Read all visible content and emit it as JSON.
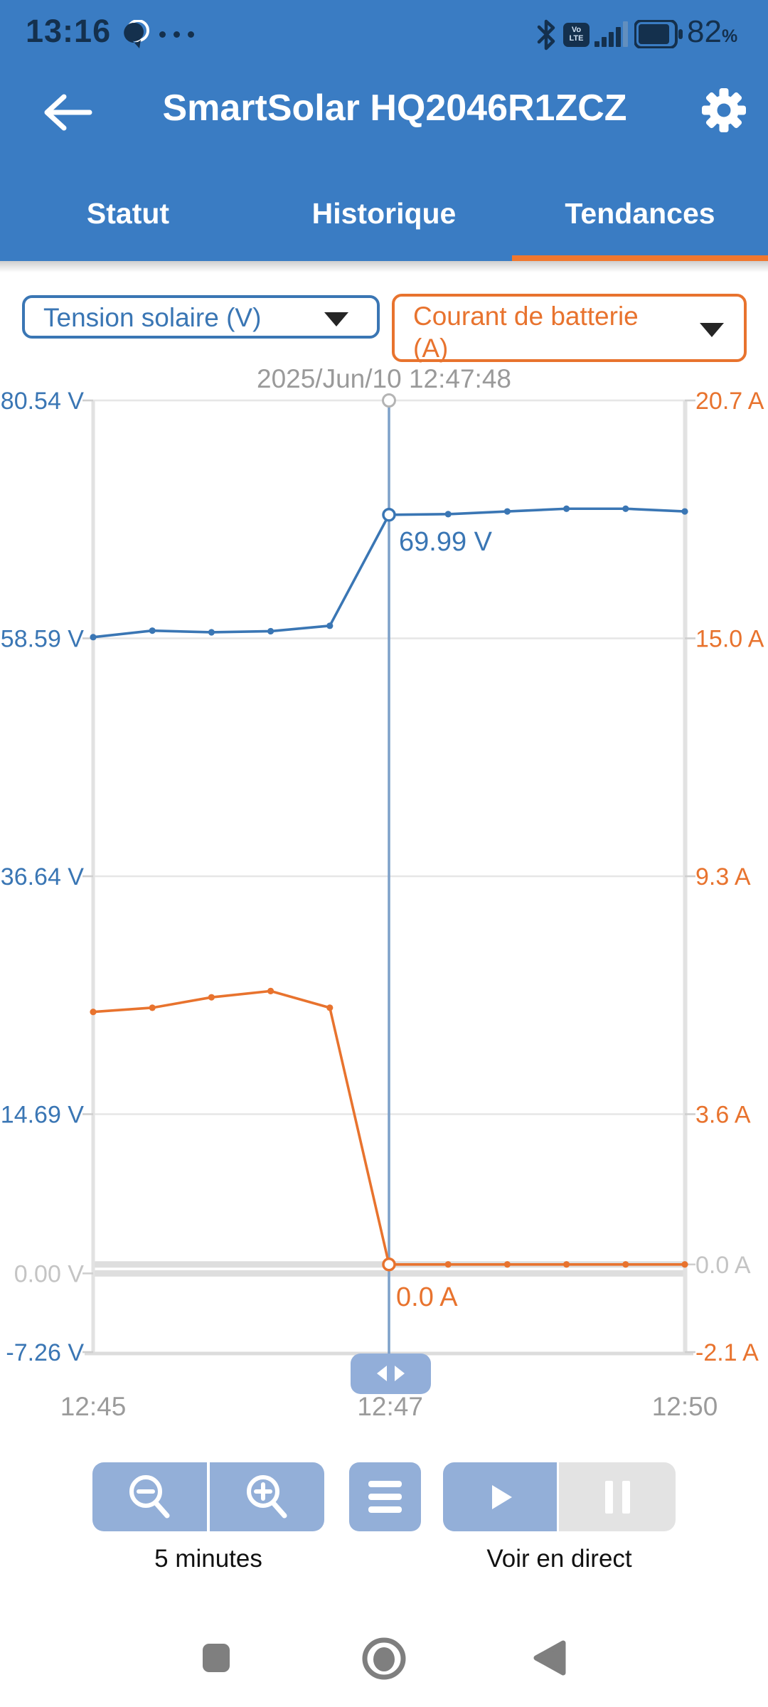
{
  "status_bar": {
    "time": "13:16",
    "battery_percent": "82",
    "percent_sign": "%",
    "volte_line1": "Vo",
    "volte_line2": "LTE"
  },
  "header": {
    "title": "SmartSolar HQ2046R1ZCZ"
  },
  "tabs": [
    {
      "label": "Statut",
      "active": false
    },
    {
      "label": "Historique",
      "active": false
    },
    {
      "label": "Tendances",
      "active": true
    }
  ],
  "selectors": {
    "left": {
      "label": "Tension solaire (V)"
    },
    "right": {
      "label": "Courant de batterie (A)"
    }
  },
  "tooltip": {
    "datetime": "2025/Jun/10 12:47:48"
  },
  "chart_data": {
    "type": "line",
    "title": "",
    "x_axis": {
      "ticks": [
        {
          "label": "12:45",
          "frac": 0.0
        },
        {
          "label": "12:47",
          "frac": 0.502
        },
        {
          "label": "12:50",
          "frac": 1.0
        }
      ]
    },
    "left_axis": {
      "name": "Tension solaire",
      "unit": "V",
      "min": -7.26,
      "max": 80.54,
      "ticks": [
        80.54,
        58.59,
        36.64,
        14.69,
        0,
        -7.26
      ],
      "tick_labels": [
        "80.54 V",
        "58.59 V",
        "36.64 V",
        "14.69 V",
        "0.00 V",
        "-7.26 V"
      ],
      "color": "#3a76b4"
    },
    "right_axis": {
      "name": "Courant de batterie",
      "unit": "A",
      "min": -2.1,
      "max": 20.7,
      "ticks": [
        20.7,
        15.0,
        9.3,
        3.6,
        0,
        -2.1
      ],
      "tick_labels": [
        "20.7 A",
        "15.0 A",
        "9.3 A",
        "3.6 A",
        "0.0 A",
        "-2.1 A"
      ],
      "color": "#e8732e"
    },
    "series": [
      {
        "name": "Tension solaire (V)",
        "axis": "left",
        "color": "#3a76b4",
        "values": [
          58.7,
          59.3,
          59.15,
          59.25,
          59.75,
          69.99,
          70.05,
          70.3,
          70.55,
          70.55,
          70.3
        ]
      },
      {
        "name": "Courant de batterie (A)",
        "axis": "right",
        "color": "#e8732e",
        "values": [
          6.05,
          6.15,
          6.4,
          6.55,
          6.15,
          0.0,
          0.0,
          0.0,
          0.0,
          0.0,
          0.0
        ]
      }
    ],
    "highlight": {
      "index": 5,
      "datetime": "2025/Jun/10 12:47:48",
      "labels": [
        {
          "series": 0,
          "text": "69.99 V"
        },
        {
          "series": 1,
          "text": "0.0 A"
        }
      ]
    },
    "grid": true,
    "legend_position": "none"
  },
  "controls": {
    "interval_label": "5 minutes",
    "live_label": "Voir en direct"
  },
  "colors": {
    "header_bg": "#3a7cc3",
    "accent_blue": "#3a76b4",
    "accent_orange": "#e8732e",
    "tab_underline": "#f0772e",
    "crosshair": "#7da0c9",
    "button_blue": "#93afd8",
    "pause_gray": "#e3e3e3",
    "status_icon": "#14304d"
  }
}
